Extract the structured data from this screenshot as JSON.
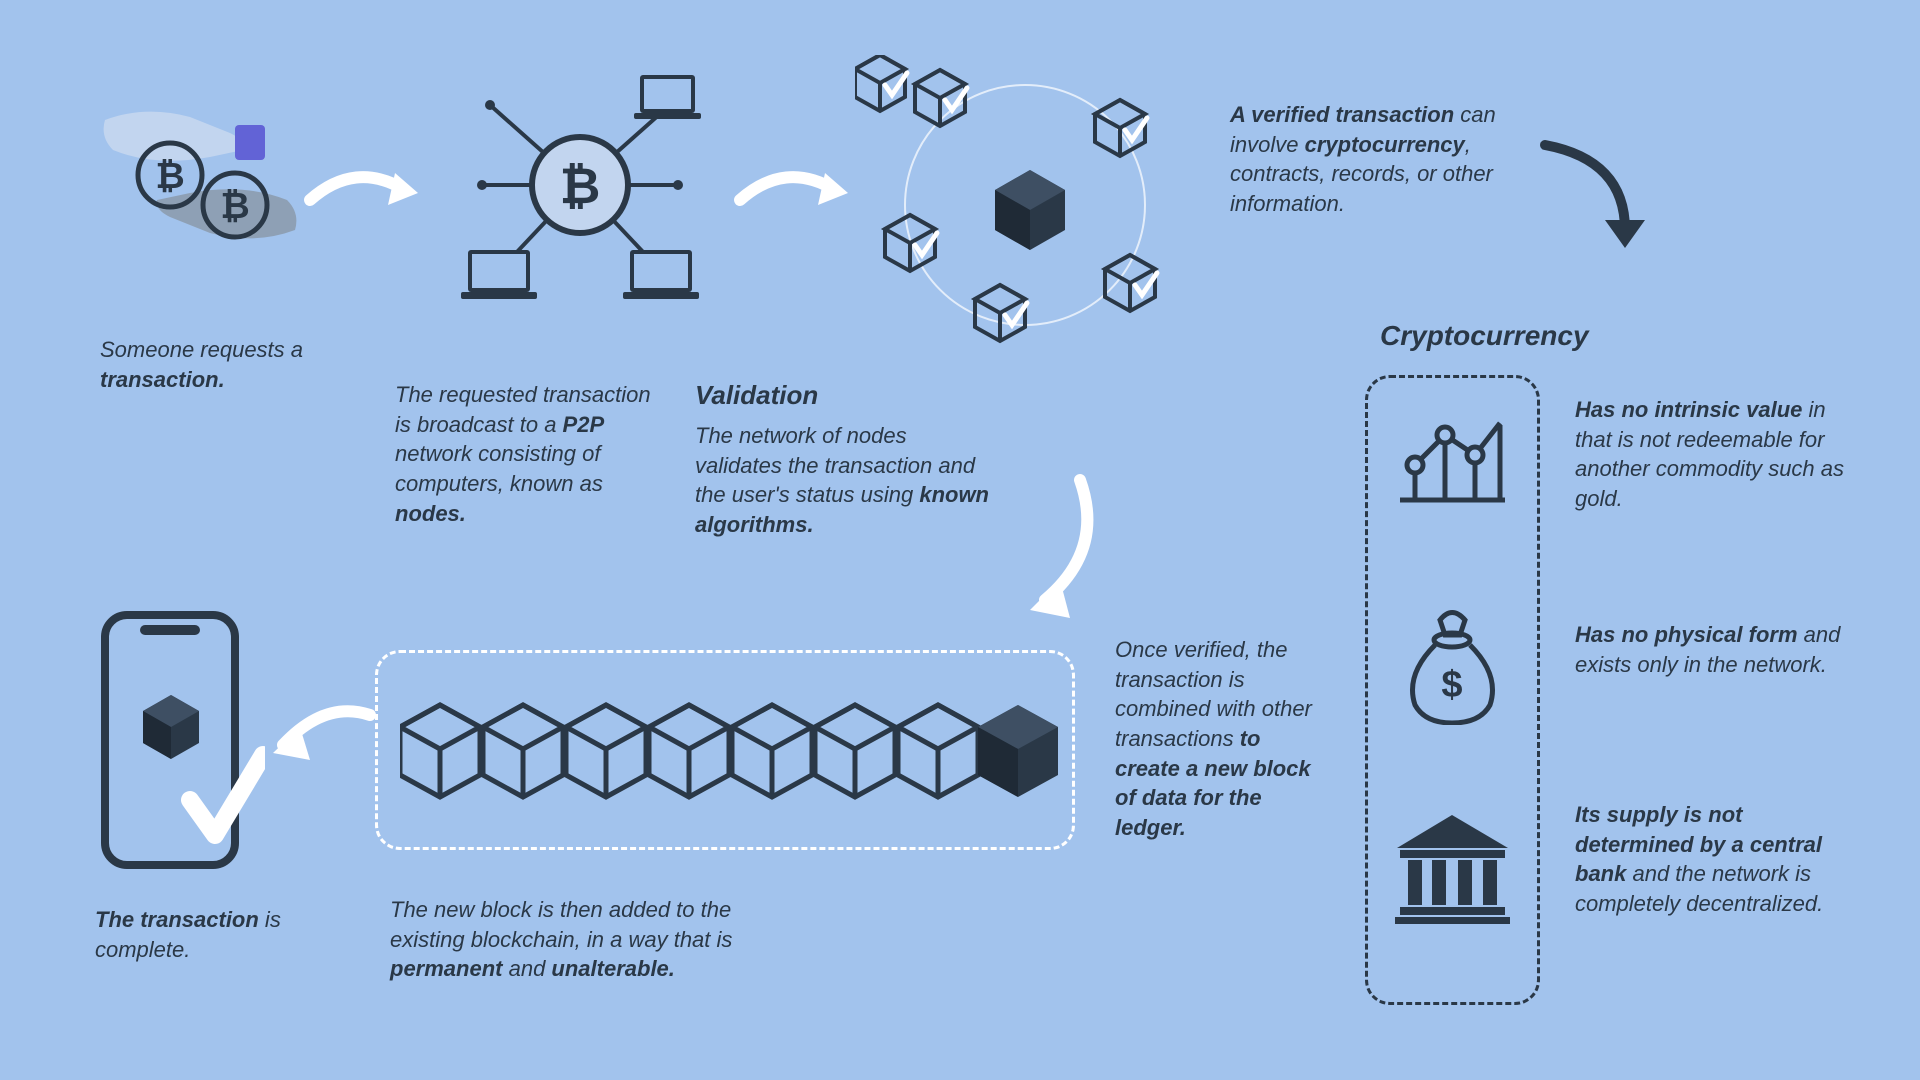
{
  "colors": {
    "bg": "#a2c3ed",
    "dark": "#2a3847",
    "light": "#c2d5ef",
    "white": "#ffffff",
    "purple": "#6263d6",
    "gray": "#8ea0b5"
  },
  "step1": {
    "text": "Someone requests a <b>transaction.</b>",
    "icon": "hands-bitcoin"
  },
  "step2": {
    "text": "The requested transaction is broadcast to a <b>P2P</b> network consisting of computers, known as <b>nodes.</b>",
    "icon": "p2p-network"
  },
  "step3": {
    "title": "Validation",
    "text": "The network of nodes validates the transaction and the user's status using <b>known algorithms.</b>",
    "icon": "validation-cubes"
  },
  "step4": {
    "text": "<b>A verified transaction</b> can involve <b>cryptocurrency</b>, contracts, records, or other information."
  },
  "crypto": {
    "title": "Cryptocurrency",
    "items": [
      {
        "icon": "chart",
        "text": "<b>Has no intrinsic value</b> in that is not redeemable for another commodity such as gold."
      },
      {
        "icon": "moneybag",
        "text": "<b>Has no physical form</b> and exists only in the network."
      },
      {
        "icon": "bank",
        "text": "<b>Its supply is not determined by a central bank</b> and the network is completely decentralized."
      }
    ]
  },
  "step5": {
    "text": "Once verified, the transaction is combined with other transactions <b>to create a new block of data for the ledger.</b>",
    "icon": "block-chain"
  },
  "step6": {
    "text": "The new block is then added to the existing blockchain, in a way that is <b>permanent</b> and <b>unalterable.</b>"
  },
  "step7": {
    "text": "<b>The transaction</b> is complete.",
    "icon": "phone-check"
  },
  "arrows": {
    "style": "curved",
    "color_white": "#ffffff",
    "color_dark": "#2a3847"
  }
}
